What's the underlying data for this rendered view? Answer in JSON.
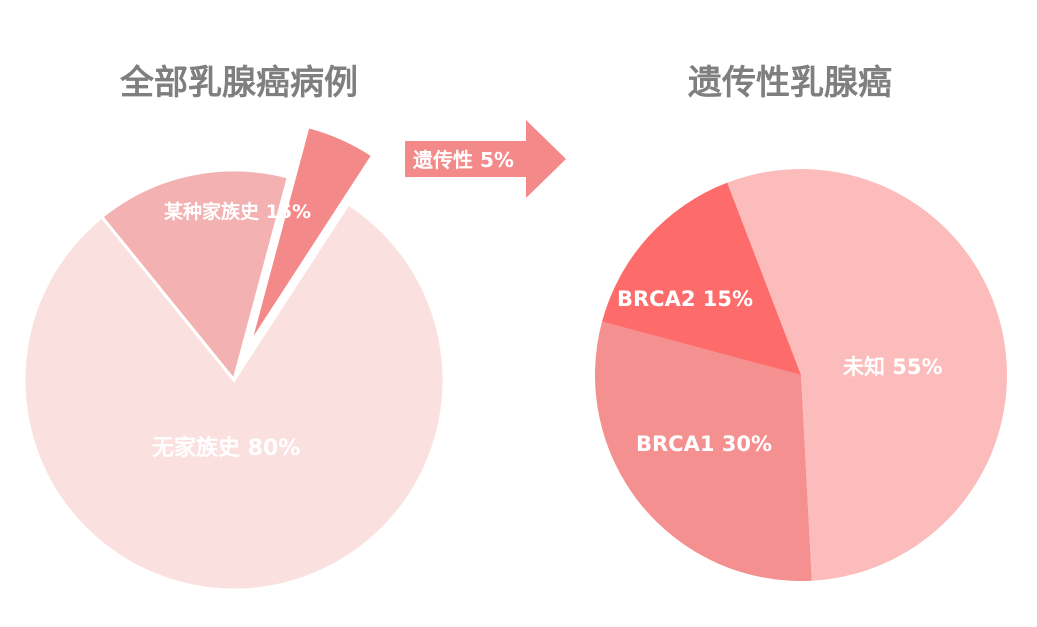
{
  "chart_data": [
    {
      "type": "pie",
      "title": "全部乳腺癌病例",
      "slices": [
        {
          "label": "无家族史",
          "value": 80,
          "display": "无家族史  80%",
          "color": "#fbe0e0"
        },
        {
          "label": "某种家族史",
          "value": 15,
          "display": "某种家族史 15%",
          "color": "#f3b1b1"
        },
        {
          "label": "遗传性",
          "value": 5,
          "display": "遗传性   5%",
          "color": "#f48989",
          "exploded": true
        }
      ]
    },
    {
      "type": "pie",
      "title": "遗传性乳腺癌",
      "slices": [
        {
          "label": "未知",
          "value": 55,
          "display": "未知  55%",
          "color": "#fdbcbc"
        },
        {
          "label": "BRCA1",
          "value": 30,
          "display": "BRCA1  30%",
          "color": "#f59090"
        },
        {
          "label": "BRCA2",
          "value": 15,
          "display": "BRCA2  15%",
          "color": "#fe6b6b"
        }
      ]
    }
  ],
  "arrow": {
    "color": "#f48989"
  }
}
